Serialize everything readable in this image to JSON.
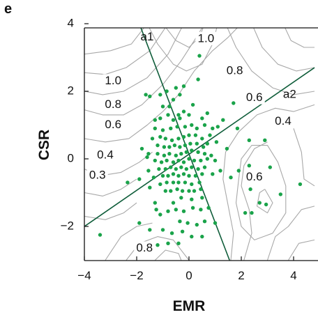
{
  "panel_label": "e",
  "chart_data": {
    "type": "scatter",
    "xlabel": "EMR",
    "ylabel": "CSR",
    "xlim": [
      -4,
      4.8
    ],
    "ylim": [
      -3,
      4
    ],
    "xticks": [
      -4,
      -2,
      0,
      2,
      4
    ],
    "yticks": [
      -2,
      0,
      2,
      4
    ],
    "xtick_labels": [
      "−4",
      "−2",
      "0",
      "2",
      "4"
    ],
    "ytick_labels": [
      "−2",
      "0",
      "2",
      "4"
    ],
    "grid": false,
    "colors": {
      "points": "#1aa34a",
      "axis_lines": "#0f5d3a",
      "contours": "#a8a8a8",
      "frame": "#111111"
    },
    "axis_lines": [
      {
        "label": "a1",
        "from": [
          -1.9,
          4.0
        ],
        "to": [
          1.55,
          -3.0
        ],
        "label_at": [
          -1.6,
          3.6
        ]
      },
      {
        "label": "a2",
        "from": [
          -4.0,
          -2.0
        ],
        "to": [
          4.8,
          2.7
        ],
        "label_at": [
          3.85,
          1.9
        ]
      }
    ],
    "contour_labels": [
      {
        "text": "1.0",
        "x": 0.65,
        "y": 3.55
      },
      {
        "text": "0.8",
        "x": 1.75,
        "y": 2.6
      },
      {
        "text": "0.6",
        "x": 2.5,
        "y": 1.8
      },
      {
        "text": "0.4",
        "x": 3.6,
        "y": 1.1
      },
      {
        "text": "1.0",
        "x": -2.9,
        "y": 2.3
      },
      {
        "text": "0.8",
        "x": -2.9,
        "y": 1.6
      },
      {
        "text": "0.6",
        "x": -2.9,
        "y": 1.0
      },
      {
        "text": "0.4",
        "x": -3.2,
        "y": 0.1
      },
      {
        "text": "0.3",
        "x": -3.5,
        "y": -0.5
      },
      {
        "text": "0.6",
        "x": 2.5,
        "y": -0.55
      },
      {
        "text": "0.8",
        "x": -1.7,
        "y": -2.65
      }
    ],
    "contours": [
      [
        [
          -4,
          3.1
        ],
        [
          -3,
          3.2
        ],
        [
          -2.2,
          3.4
        ],
        [
          -1.6,
          4
        ]
      ],
      [
        [
          -4,
          2.55
        ],
        [
          -3.2,
          2.5
        ],
        [
          -2.4,
          2.7
        ],
        [
          -1.5,
          3.2
        ],
        [
          -0.8,
          4
        ]
      ],
      [
        [
          -4,
          2.0
        ],
        [
          -3.3,
          1.9
        ],
        [
          -2.5,
          2.0
        ],
        [
          -1.6,
          2.4
        ],
        [
          -0.8,
          3.1
        ],
        [
          -0.2,
          4
        ]
      ],
      [
        [
          -4,
          1.45
        ],
        [
          -3.3,
          1.3
        ],
        [
          -2.5,
          1.3
        ],
        [
          -1.8,
          1.6
        ],
        [
          -1.0,
          2.2
        ],
        [
          -0.3,
          2.9
        ],
        [
          0.2,
          3.5
        ],
        [
          0.6,
          4
        ]
      ],
      [
        [
          -4,
          0.6
        ],
        [
          -3.2,
          0.5
        ],
        [
          -2.3,
          0.6
        ],
        [
          -1.6,
          1.0
        ],
        [
          -1.0,
          1.4
        ],
        [
          -0.4,
          1.9
        ],
        [
          0.2,
          2.6
        ],
        [
          0.9,
          3.2
        ],
        [
          1.5,
          3.6
        ],
        [
          2.0,
          4
        ]
      ],
      [
        [
          -4,
          -0.3
        ],
        [
          -3.4,
          -0.5
        ],
        [
          -2.6,
          -0.4
        ],
        [
          -1.9,
          -0.1
        ],
        [
          -1.4,
          0.2
        ]
      ],
      [
        [
          -4,
          -1.0
        ],
        [
          -3.3,
          -1.1
        ],
        [
          -2.6,
          -0.9
        ],
        [
          -2.0,
          -0.6
        ]
      ],
      [
        [
          -4,
          -1.7
        ],
        [
          -3.2,
          -1.8
        ],
        [
          -2.5,
          -1.6
        ],
        [
          -2.0,
          -1.3
        ]
      ],
      [
        [
          -3.2,
          -3
        ],
        [
          -2.6,
          -2.3
        ],
        [
          -2.0,
          -2.0
        ],
        [
          -1.4,
          -1.9
        ]
      ],
      [
        [
          -2.4,
          -3
        ],
        [
          -1.9,
          -2.5
        ],
        [
          -1.2,
          -2.3
        ],
        [
          -0.6,
          -2.4
        ],
        [
          -0.2,
          -2.8
        ],
        [
          0.0,
          -3
        ]
      ],
      [
        [
          -1.3,
          -3
        ],
        [
          -0.9,
          -2.7
        ],
        [
          -0.4,
          -2.8
        ],
        [
          -0.3,
          -3
        ]
      ],
      [
        [
          1.4,
          4
        ],
        [
          1.8,
          3.3
        ],
        [
          2.4,
          2.6
        ],
        [
          3.2,
          2.1
        ],
        [
          4.0,
          1.9
        ],
        [
          4.8,
          2.0
        ]
      ],
      [
        [
          2.4,
          4
        ],
        [
          2.8,
          3.3
        ],
        [
          3.4,
          2.8
        ],
        [
          4.1,
          2.6
        ],
        [
          4.8,
          2.7
        ]
      ],
      [
        [
          3.6,
          4
        ],
        [
          3.9,
          3.5
        ],
        [
          4.4,
          3.3
        ],
        [
          4.8,
          3.3
        ]
      ],
      [
        [
          1.6,
          -3
        ],
        [
          1.7,
          -2.2
        ],
        [
          1.5,
          -1.4
        ],
        [
          1.3,
          -0.6
        ],
        [
          1.4,
          0.2
        ],
        [
          1.9,
          0.8
        ],
        [
          2.6,
          1.3
        ],
        [
          3.3,
          1.5
        ],
        [
          4.0,
          1.4
        ],
        [
          4.8,
          1.6
        ]
      ],
      [
        [
          2.1,
          -3
        ],
        [
          2.4,
          -2.2
        ],
        [
          2.3,
          -1.5
        ],
        [
          2.0,
          -0.8
        ],
        [
          2.1,
          -0.2
        ],
        [
          2.5,
          0.3
        ],
        [
          3.0,
          0.5
        ]
      ],
      [
        [
          3.0,
          -3
        ],
        [
          3.3,
          -2.3
        ],
        [
          3.8,
          -2.0
        ],
        [
          4.3,
          -1.5
        ],
        [
          4.8,
          -1.4
        ]
      ],
      [
        [
          3.8,
          -3
        ],
        [
          4.2,
          -2.5
        ],
        [
          4.8,
          -2.4
        ]
      ],
      [
        [
          4.0,
          0.9
        ],
        [
          4.3,
          0.2
        ],
        [
          4.4,
          -0.6
        ],
        [
          4.8,
          -0.8
        ]
      ],
      [
        [
          2.9,
          -0.9
        ],
        [
          3.2,
          -1.3
        ],
        [
          3.0,
          -1.6
        ],
        [
          2.6,
          -1.4
        ],
        [
          2.7,
          -1.0
        ],
        [
          2.9,
          -0.9
        ]
      ],
      [
        [
          1.9,
          -0.6
        ],
        [
          1.8,
          -1.3
        ],
        [
          2.0,
          -2.0
        ],
        [
          2.5,
          -2.4
        ],
        [
          3.2,
          -2.2
        ],
        [
          3.7,
          -1.6
        ],
        [
          3.7,
          -0.8
        ],
        [
          3.4,
          -0.1
        ],
        [
          3.0,
          0.4
        ],
        [
          2.4,
          0.4
        ],
        [
          2.0,
          0.0
        ],
        [
          1.9,
          -0.6
        ]
      ],
      [
        [
          -1.6,
          4
        ],
        [
          -1.2,
          3.4
        ],
        [
          -0.6,
          2.8
        ],
        [
          -0.1,
          2.6
        ],
        [
          0.5,
          2.8
        ],
        [
          0.9,
          3.4
        ],
        [
          1.1,
          4
        ]
      ],
      [
        [
          -1.0,
          4
        ],
        [
          -0.5,
          3.5
        ],
        [
          0.0,
          3.3
        ],
        [
          0.4,
          3.6
        ],
        [
          0.6,
          4
        ]
      ]
    ],
    "points": [
      [
        0.4,
        3.05
      ],
      [
        0.35,
        2.35
      ],
      [
        -1.65,
        1.9
      ],
      [
        -1.5,
        1.85
      ],
      [
        -1.1,
        1.9
      ],
      [
        -0.35,
        1.9
      ],
      [
        -0.85,
        2.0
      ],
      [
        -0.5,
        2.1
      ],
      [
        0.5,
        1.2
      ],
      [
        0.6,
        1.0
      ],
      [
        0.9,
        0.9
      ],
      [
        1.3,
        1.15
      ],
      [
        1.1,
        0.95
      ],
      [
        0.8,
        0.7
      ],
      [
        1.05,
        0.5
      ],
      [
        1.45,
        0.3
      ],
      [
        -0.8,
        1.3
      ],
      [
        -1.1,
        1.2
      ],
      [
        -1.3,
        1.15
      ],
      [
        -0.6,
        1.15
      ],
      [
        -0.4,
        1.3
      ],
      [
        -0.2,
        1.4
      ],
      [
        0.0,
        1.3
      ],
      [
        -0.35,
        1.2
      ],
      [
        -1.3,
        0.9
      ],
      [
        -1.0,
        0.85
      ],
      [
        -0.7,
        0.9
      ],
      [
        -0.45,
        0.95
      ],
      [
        -0.15,
        0.95
      ],
      [
        0.1,
        1.0
      ],
      [
        0.3,
        0.9
      ],
      [
        -1.4,
        0.6
      ],
      [
        -1.1,
        0.65
      ],
      [
        -0.9,
        0.6
      ],
      [
        -0.65,
        0.55
      ],
      [
        -0.4,
        0.6
      ],
      [
        -0.2,
        0.65
      ],
      [
        0.0,
        0.7
      ],
      [
        0.25,
        0.7
      ],
      [
        0.5,
        0.6
      ],
      [
        0.7,
        0.45
      ],
      [
        -1.2,
        0.4
      ],
      [
        -0.95,
        0.35
      ],
      [
        -0.75,
        0.35
      ],
      [
        -0.55,
        0.4
      ],
      [
        -0.35,
        0.35
      ],
      [
        -0.15,
        0.4
      ],
      [
        0.05,
        0.45
      ],
      [
        0.3,
        0.45
      ],
      [
        0.55,
        0.35
      ],
      [
        -1.55,
        0.15
      ],
      [
        -1.2,
        0.15
      ],
      [
        -0.95,
        0.1
      ],
      [
        -0.75,
        0.15
      ],
      [
        -0.5,
        0.1
      ],
      [
        -0.3,
        0.15
      ],
      [
        -0.1,
        0.2
      ],
      [
        0.1,
        0.25
      ],
      [
        0.35,
        0.2
      ],
      [
        0.6,
        0.15
      ],
      [
        0.85,
        0.1
      ],
      [
        -1.3,
        -0.05
      ],
      [
        -1.05,
        -0.1
      ],
      [
        -0.85,
        -0.05
      ],
      [
        -0.6,
        -0.1
      ],
      [
        -0.4,
        -0.05
      ],
      [
        -0.2,
        -0.1
      ],
      [
        0.0,
        0.0
      ],
      [
        0.2,
        -0.05
      ],
      [
        0.45,
        -0.05
      ],
      [
        0.7,
        0.0
      ],
      [
        -1.15,
        -0.3
      ],
      [
        -0.9,
        -0.3
      ],
      [
        -0.7,
        -0.25
      ],
      [
        -0.5,
        -0.3
      ],
      [
        -0.3,
        -0.25
      ],
      [
        -0.1,
        -0.3
      ],
      [
        0.1,
        -0.25
      ],
      [
        0.35,
        -0.3
      ],
      [
        0.6,
        -0.25
      ],
      [
        -1.0,
        -0.5
      ],
      [
        -0.8,
        -0.5
      ],
      [
        -0.6,
        -0.45
      ],
      [
        -0.4,
        -0.5
      ],
      [
        -0.2,
        -0.45
      ],
      [
        0.0,
        -0.5
      ],
      [
        0.25,
        -0.5
      ],
      [
        0.5,
        -0.45
      ],
      [
        -1.1,
        -0.75
      ],
      [
        -0.85,
        -0.7
      ],
      [
        -0.6,
        -0.7
      ],
      [
        -0.4,
        -0.7
      ],
      [
        -0.15,
        -0.7
      ],
      [
        0.1,
        -0.75
      ],
      [
        0.4,
        -0.7
      ],
      [
        -0.9,
        -0.95
      ],
      [
        -0.7,
        -0.95
      ],
      [
        -0.45,
        -0.9
      ],
      [
        -0.25,
        -0.95
      ],
      [
        0.0,
        -0.95
      ],
      [
        0.2,
        -0.95
      ],
      [
        0.45,
        -0.9
      ],
      [
        -1.5,
        -0.85
      ],
      [
        -1.9,
        -0.6
      ],
      [
        -1.8,
        0.3
      ],
      [
        -1.6,
        0.05
      ],
      [
        -0.3,
        -1.15
      ],
      [
        0.1,
        -1.2
      ],
      [
        0.5,
        -1.15
      ],
      [
        -0.6,
        -1.3
      ],
      [
        -0.8,
        -1.55
      ],
      [
        -0.5,
        -1.5
      ],
      [
        -0.2,
        -1.55
      ],
      [
        0.15,
        -1.45
      ],
      [
        0.45,
        -1.5
      ],
      [
        0.75,
        -1.45
      ],
      [
        -1.25,
        -1.5
      ],
      [
        -1.1,
        -1.65
      ],
      [
        -1.3,
        -1.3
      ],
      [
        -0.35,
        -1.85
      ],
      [
        -0.05,
        -1.9
      ],
      [
        0.3,
        -1.95
      ],
      [
        0.6,
        -1.85
      ],
      [
        1.0,
        -1.9
      ],
      [
        -1.0,
        -2.1
      ],
      [
        -0.65,
        -2.2
      ],
      [
        -0.25,
        -2.15
      ],
      [
        0.1,
        -2.3
      ],
      [
        0.5,
        -2.3
      ],
      [
        -1.2,
        -2.55
      ],
      [
        -0.8,
        -2.5
      ],
      [
        -0.4,
        -2.5
      ],
      [
        -1.5,
        -2.1
      ],
      [
        -1.9,
        -1.9
      ],
      [
        -2.35,
        -0.7
      ],
      [
        -3.4,
        -2.25
      ],
      [
        1.6,
        -0.55
      ],
      [
        1.2,
        -0.35
      ],
      [
        1.0,
        -0.05
      ],
      [
        0.9,
        -0.45
      ],
      [
        2.3,
        -0.2
      ],
      [
        2.35,
        -0.9
      ],
      [
        1.9,
        -0.35
      ],
      [
        2.7,
        -1.3
      ],
      [
        2.15,
        -1.6
      ],
      [
        2.4,
        -1.6
      ],
      [
        2.95,
        -1.35
      ],
      [
        3.5,
        -1.05
      ],
      [
        4.25,
        -0.75
      ],
      [
        2.3,
        0.55
      ],
      [
        2.9,
        0.55
      ],
      [
        3.1,
        -0.25
      ],
      [
        1.7,
        1.65
      ],
      [
        1.85,
        0.9
      ],
      [
        -0.2,
        2.15
      ],
      [
        -0.75,
        1.55
      ],
      [
        -0.6,
        1.75
      ],
      [
        -1.0,
        1.55
      ],
      [
        0.15,
        1.6
      ],
      [
        0.7,
        1.35
      ],
      [
        -1.55,
        -0.35
      ],
      [
        -1.35,
        -0.55
      ]
    ]
  }
}
